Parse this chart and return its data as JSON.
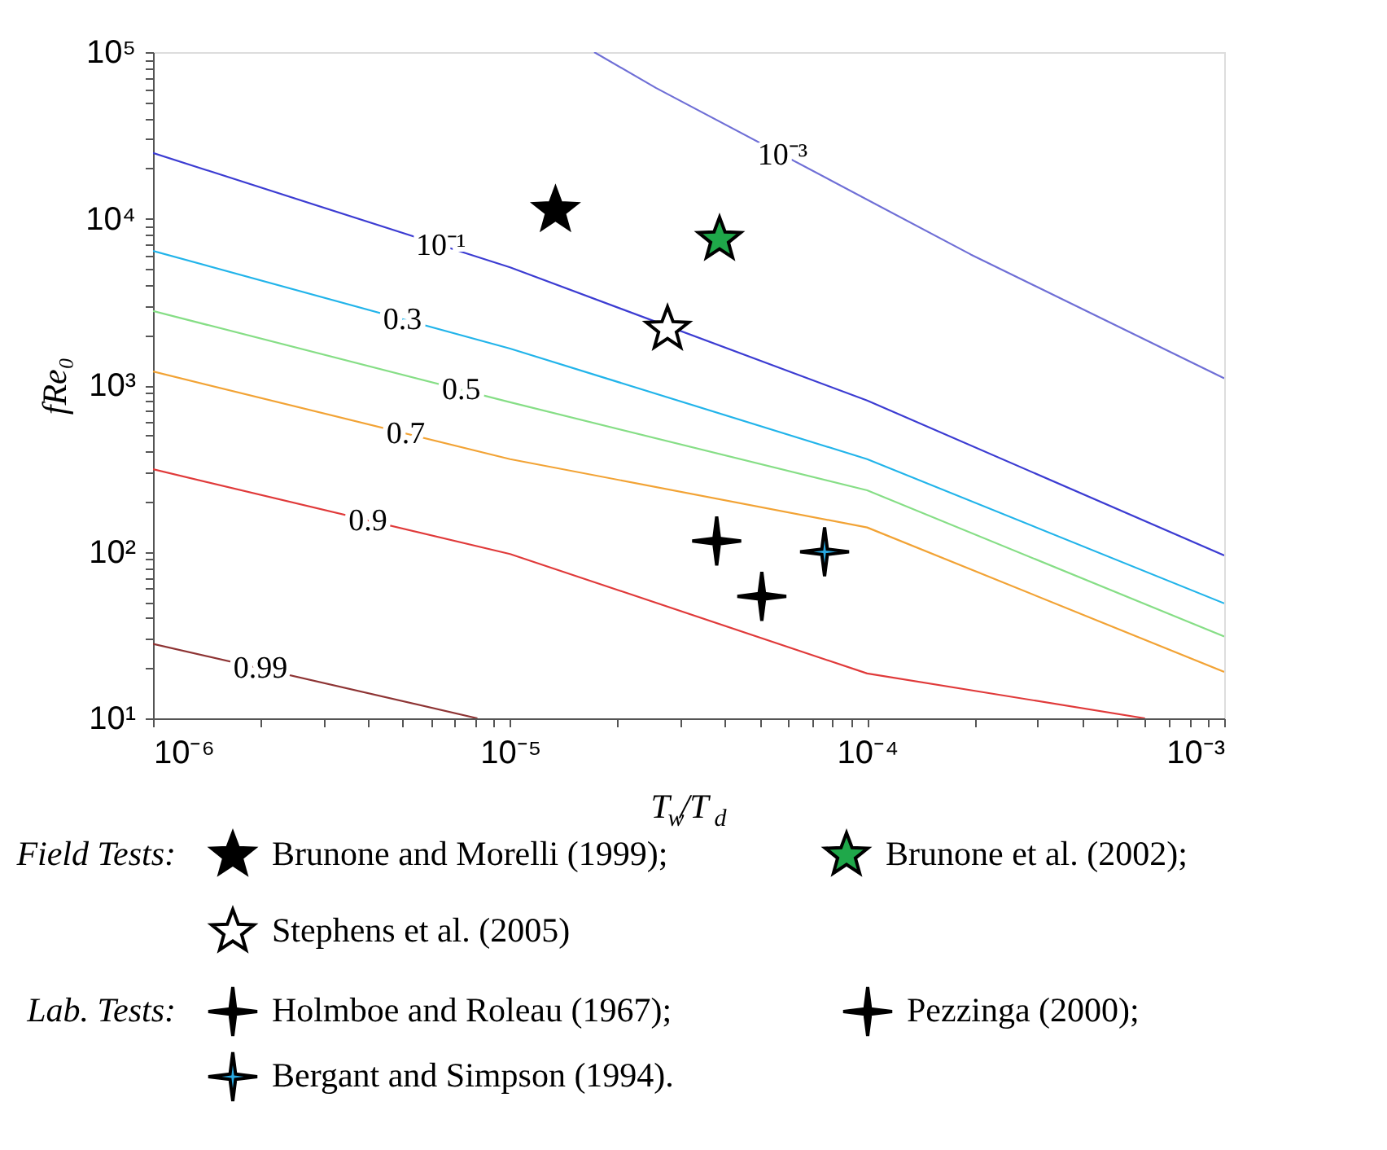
{
  "chart_data": {
    "type": "line",
    "xlabel": "T$_{w}$/T$_{d}$",
    "ylabel": "fRe₀",
    "log": "xy",
    "legend": "bottom",
    "grid": false,
    "xlim": [
      1e-06,
      0.001
    ],
    "ylim": [
      10,
      100000
    ],
    "xticks": [
      {
        "value": 1e-06,
        "label": "10⁻⁶"
      },
      {
        "value": 2e-06,
        "label": null
      },
      {
        "value": 3e-06,
        "label": null
      },
      {
        "value": 4e-06,
        "label": null
      },
      {
        "value": 5e-06,
        "label": null
      },
      {
        "value": 6e-06,
        "label": null
      },
      {
        "value": 7e-06,
        "label": null
      },
      {
        "value": 8e-06,
        "label": null
      },
      {
        "value": 9e-06,
        "label": null
      },
      {
        "value": 1e-05,
        "label": "10⁻⁵"
      },
      {
        "value": 2e-05,
        "label": null
      },
      {
        "value": 3e-05,
        "label": null
      },
      {
        "value": 4e-05,
        "label": null
      },
      {
        "value": 5e-05,
        "label": null
      },
      {
        "value": 6e-05,
        "label": null
      },
      {
        "value": 7e-05,
        "label": null
      },
      {
        "value": 8e-05,
        "label": null
      },
      {
        "value": 9e-05,
        "label": null
      },
      {
        "value": 0.0001,
        "label": "10⁻⁴"
      },
      {
        "value": 0.0002,
        "label": null
      },
      {
        "value": 0.0003,
        "label": null
      },
      {
        "value": 0.0004,
        "label": null
      },
      {
        "value": 0.0005,
        "label": null
      },
      {
        "value": 0.0006,
        "label": null
      },
      {
        "value": 0.0007,
        "label": null
      },
      {
        "value": 0.0008,
        "label": null
      },
      {
        "value": 0.0009,
        "label": null
      },
      {
        "value": 0.001,
        "label": "10⁻³"
      }
    ],
    "yticks": [
      {
        "value": 10,
        "label": "10¹"
      },
      {
        "value": 20,
        "label": null
      },
      {
        "value": 30,
        "label": null
      },
      {
        "value": 40,
        "label": null
      },
      {
        "value": 50,
        "label": null
      },
      {
        "value": 60,
        "label": null
      },
      {
        "value": 70,
        "label": null
      },
      {
        "value": 80,
        "label": null
      },
      {
        "value": 90,
        "label": null
      },
      {
        "value": 100,
        "label": "10²"
      },
      {
        "value": 200,
        "label": null
      },
      {
        "value": 300,
        "label": null
      },
      {
        "value": 400,
        "label": null
      },
      {
        "value": 500,
        "label": null
      },
      {
        "value": 600,
        "label": null
      },
      {
        "value": 700,
        "label": null
      },
      {
        "value": 800,
        "label": null
      },
      {
        "value": 900,
        "label": null
      },
      {
        "value": 1000,
        "label": "10³"
      },
      {
        "value": 2000,
        "label": null
      },
      {
        "value": 3000,
        "label": null
      },
      {
        "value": 4000,
        "label": null
      },
      {
        "value": 5000,
        "label": null
      },
      {
        "value": 6000,
        "label": null
      },
      {
        "value": 7000,
        "label": null
      },
      {
        "value": 8000,
        "label": null
      },
      {
        "value": 9000,
        "label": null
      },
      {
        "value": 10000,
        "label": "10⁴"
      },
      {
        "value": 20000,
        "label": null
      },
      {
        "value": 30000,
        "label": null
      },
      {
        "value": 40000,
        "label": null
      },
      {
        "value": 50000,
        "label": null
      },
      {
        "value": 60000,
        "label": null
      },
      {
        "value": 70000,
        "label": null
      },
      {
        "value": 80000,
        "label": null
      },
      {
        "value": 90000,
        "label": null
      },
      {
        "value": 100000,
        "label": "10⁵"
      }
    ],
    "series": [
      {
        "color": "#6f6fd6",
        "x": [
          1.72e-05,
          2.56e-05,
          0.000195,
          0.001
        ],
        "values": [
          100000,
          61000,
          6100,
          1100
        ]
      },
      {
        "color": "#3c3cd2",
        "x": [
          1e-06,
          1e-05,
          0.0001,
          0.001
        ],
        "values": [
          24800,
          5100,
          810,
          95
        ]
      },
      {
        "color": "#22b4ea",
        "x": [
          1e-06,
          1e-05,
          0.0001,
          0.001
        ],
        "values": [
          6400,
          1660,
          360,
          49
        ]
      },
      {
        "color": "#86de86",
        "x": [
          1e-06,
          1e-05,
          0.0001,
          0.001
        ],
        "values": [
          2790,
          790,
          234,
          31
        ]
      },
      {
        "color": "#f2a335",
        "x": [
          1e-06,
          1e-05,
          0.0001,
          0.001
        ],
        "values": [
          1210,
          360,
          140,
          19
        ]
      },
      {
        "color": "#e03a3a",
        "x": [
          1e-06,
          1e-05,
          0.0001,
          0.0006
        ],
        "values": [
          313,
          97,
          18.6,
          10
        ]
      },
      {
        "color": "#8e3434",
        "x": [
          1e-06,
          8.1e-06
        ],
        "values": [
          28,
          10
        ]
      },
      {
        "type": "scatter",
        "name": "Brunone and Morelli (1999);",
        "color": "#000000",
        "marker": "star",
        "x": [
          1.34e-05
        ],
        "values": [
          11200
        ]
      },
      {
        "type": "scatter",
        "name": "Brunone et al. (2002);",
        "color": "#1fa84a",
        "marker": "star",
        "x": [
          3.86e-05
        ],
        "values": [
          7500
        ]
      },
      {
        "type": "scatter",
        "name": "Stephens et al. (2005)",
        "color": "#ffffff",
        "marker": "star",
        "x": [
          2.76e-05
        ],
        "values": [
          2170
        ]
      },
      {
        "type": "scatter",
        "name": "Holmboe and Roleau (1967);",
        "color": "#000000",
        "marker": "cross",
        "x": [
          5.07e-05
        ],
        "values": [
          54
        ]
      },
      {
        "type": "scatter",
        "name": "Pezzinga (2000);",
        "color": "#000000",
        "marker": "cross",
        "x": [
          3.79e-05
        ],
        "values": [
          116
        ]
      },
      {
        "type": "scatter",
        "name": "Bergant and Simpson (1994).",
        "color": "#29a8e0",
        "marker": "cross",
        "x": [
          7.6e-05
        ],
        "values": [
          100
        ]
      }
    ],
    "annotations": [
      {
        "text": "10⁻³",
        "x": 5.8e-05,
        "y": 24100
      },
      {
        "text": "10⁻¹",
        "x": 6.4e-06,
        "y": 6930
      },
      {
        "text": "0.3",
        "x": 5e-06,
        "y": 2490
      },
      {
        "text": "0.5",
        "x": 7.3e-06,
        "y": 940
      },
      {
        "text": "0.7",
        "x": 5.1e-06,
        "y": 513
      },
      {
        "text": "0.9",
        "x": 4e-06,
        "y": 155
      },
      {
        "text": "0.99",
        "x": 2e-06,
        "y": 20
      },
      "Field Tests:",
      "Lab. Tests:"
    ]
  }
}
